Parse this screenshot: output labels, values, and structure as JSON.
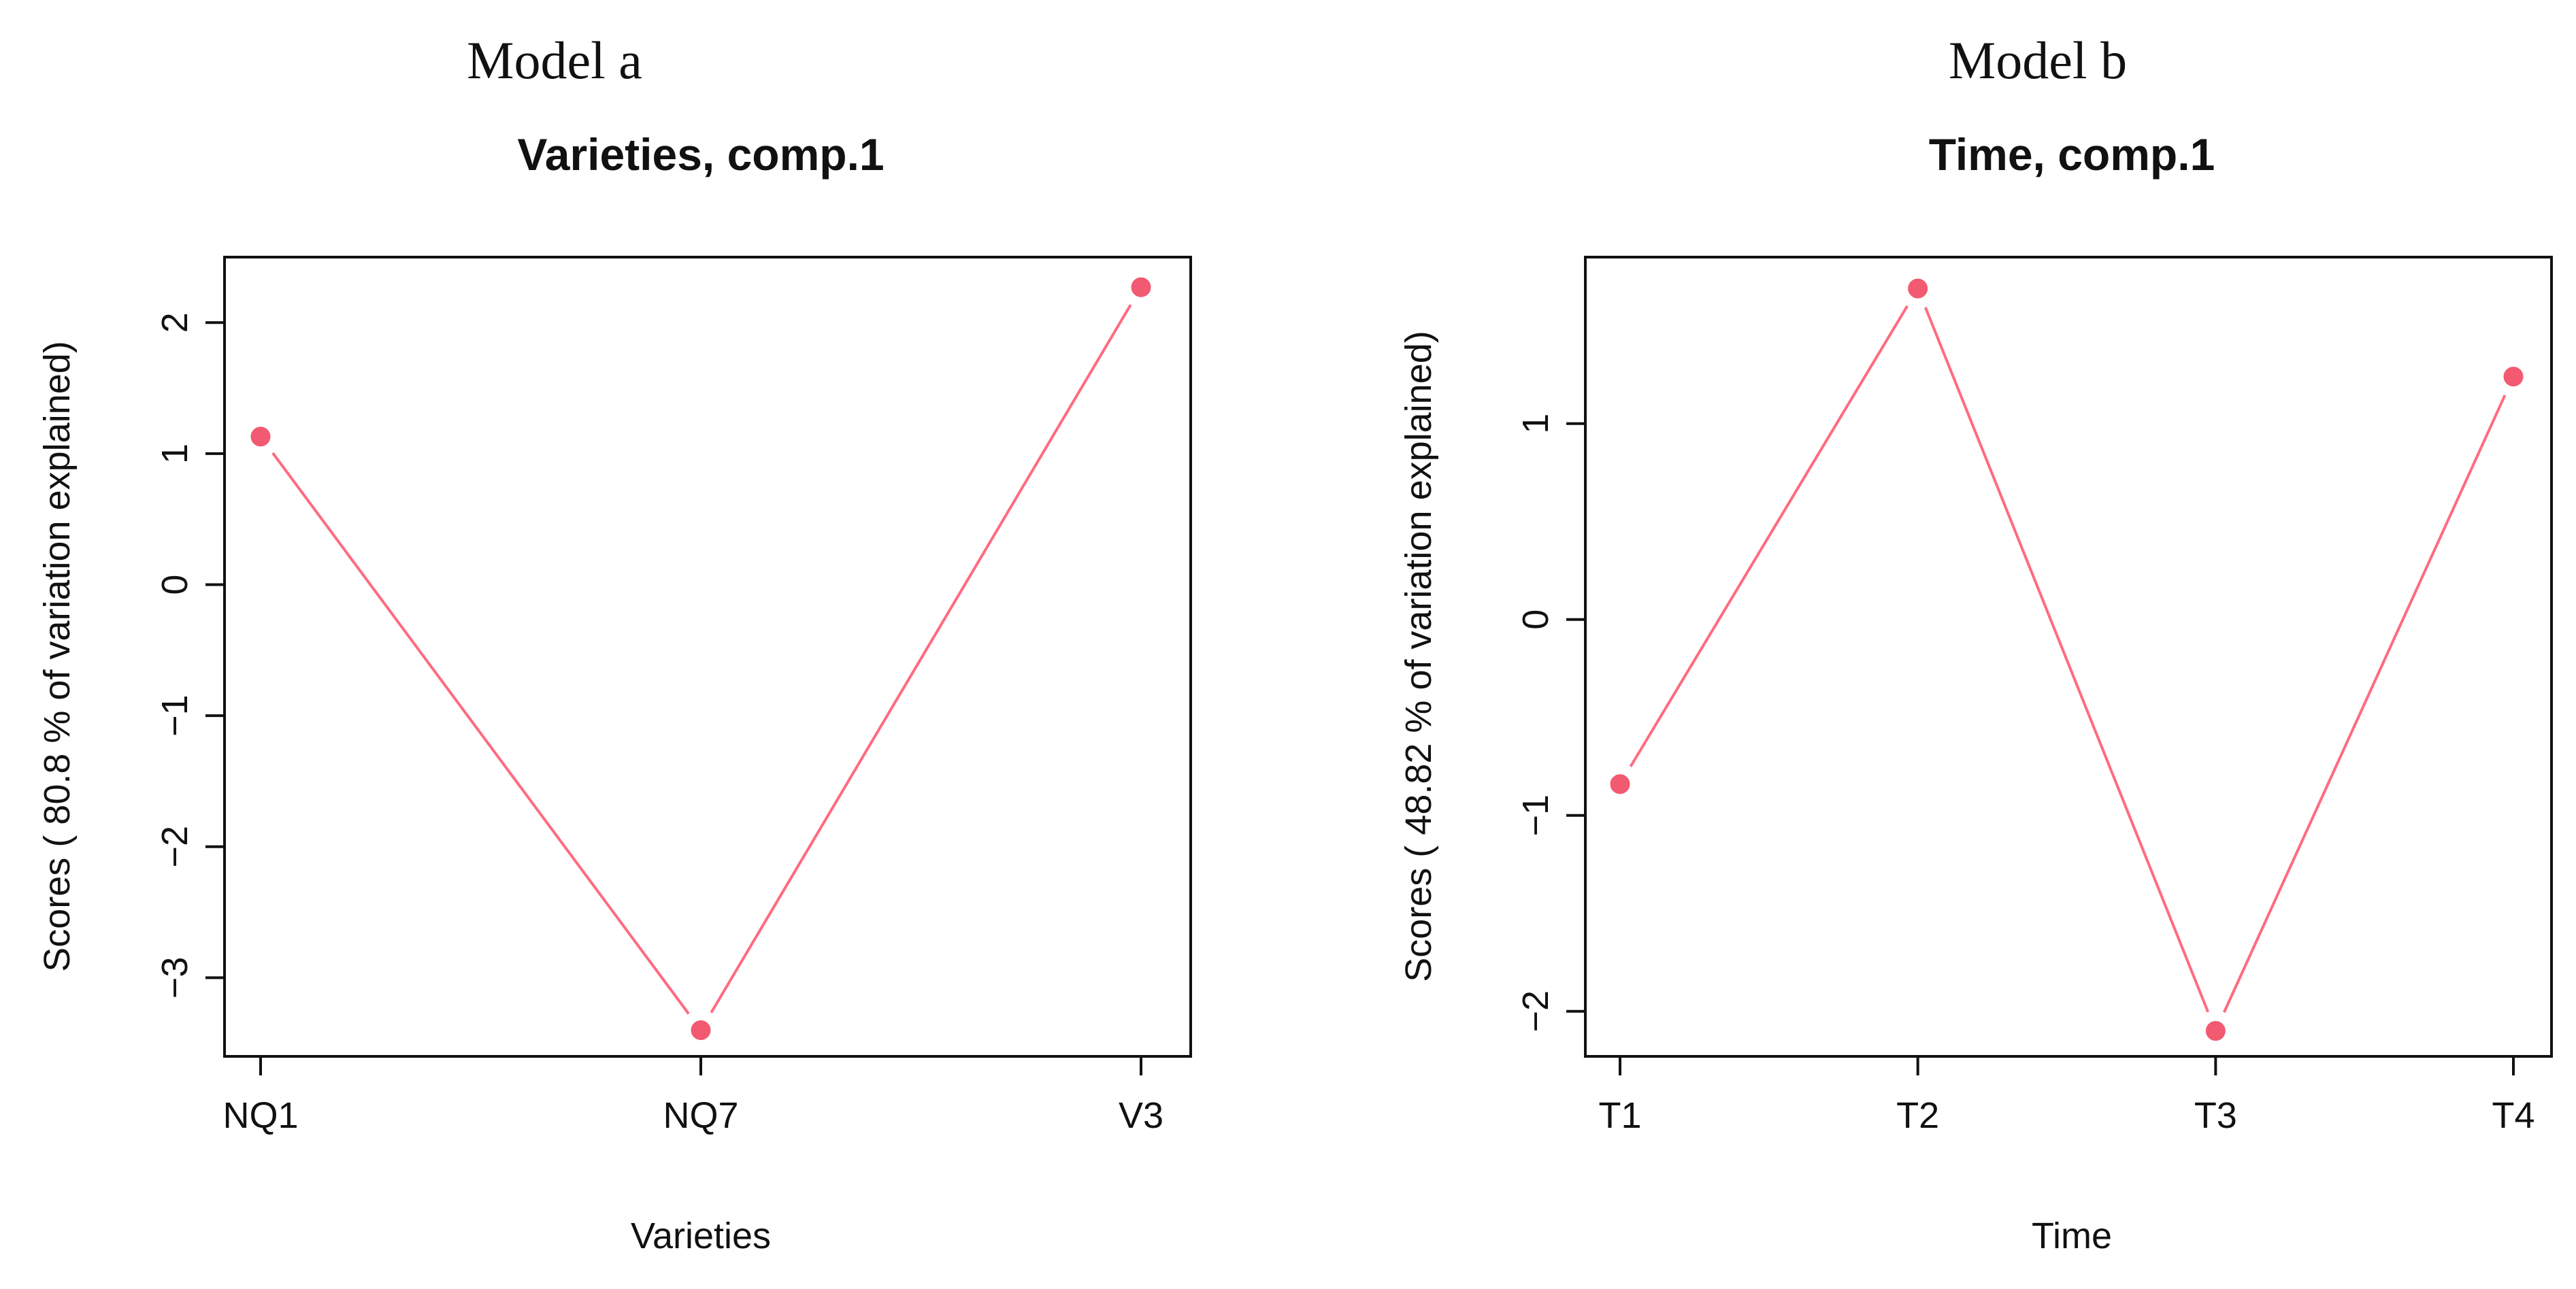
{
  "chart_data": [
    {
      "type": "line",
      "panel_label": "Model a",
      "title": "Varieties, comp.1",
      "xlabel": "Varieties",
      "ylabel": "Scores ( 80.8 % of variation explained)",
      "categories": [
        "NQ1",
        "NQ7",
        "V3"
      ],
      "values": [
        1.13,
        -3.4,
        2.27
      ],
      "yticks": [
        -3,
        -2,
        -1,
        0,
        1,
        2
      ],
      "ytick_labels": [
        "−3",
        "−2",
        "−1",
        "0",
        "1",
        "2"
      ],
      "ylim": [
        -3.6,
        2.5
      ],
      "grid": false,
      "legend": "none",
      "color": "#f25a72"
    },
    {
      "type": "line",
      "panel_label": "Model b",
      "title": "Time, comp.1",
      "xlabel": "Time",
      "ylabel": "Scores ( 48.82 % of variation explained)",
      "categories": [
        "T1",
        "T2",
        "T3",
        "T4"
      ],
      "values": [
        -0.84,
        1.69,
        -2.1,
        1.24
      ],
      "yticks": [
        -2,
        -1,
        0,
        1
      ],
      "ytick_labels": [
        "−2",
        "−1",
        "0",
        "1"
      ],
      "ylim": [
        -2.23,
        1.85
      ],
      "grid": false,
      "legend": "none",
      "color": "#f25a72"
    }
  ]
}
